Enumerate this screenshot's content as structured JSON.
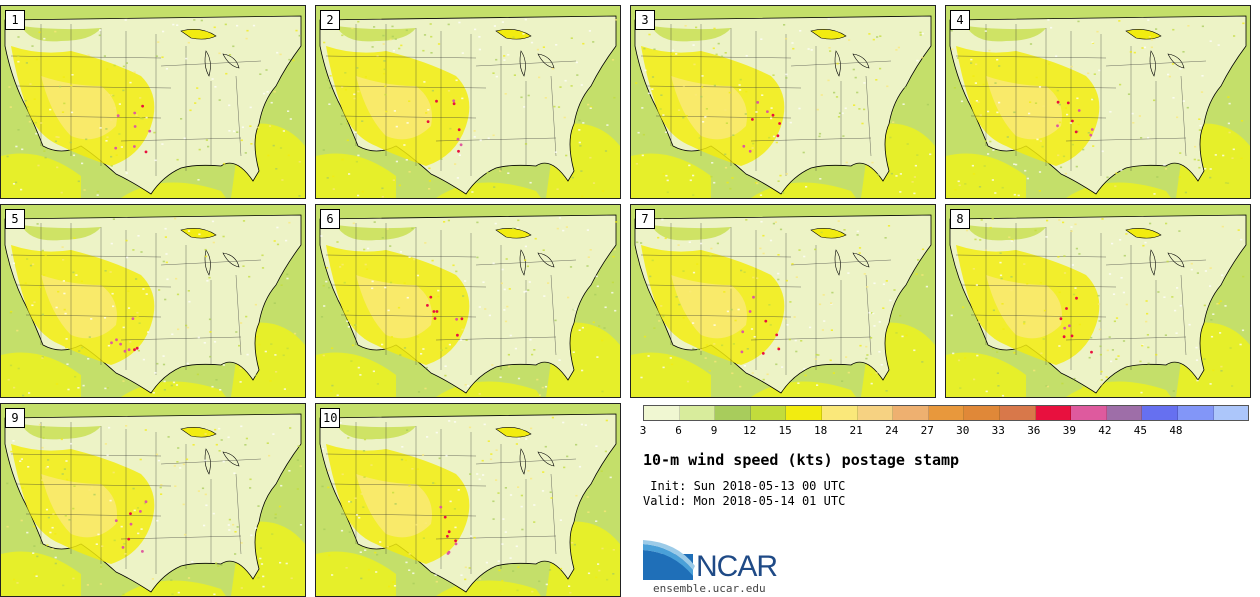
{
  "panels": [
    {
      "label": "1"
    },
    {
      "label": "2"
    },
    {
      "label": "3"
    },
    {
      "label": "4"
    },
    {
      "label": "5"
    },
    {
      "label": "6"
    },
    {
      "label": "7"
    },
    {
      "label": "8"
    },
    {
      "label": "9"
    },
    {
      "label": "10"
    }
  ],
  "legend": {
    "colors": [
      "#f0f7d2",
      "#d8ec9c",
      "#a8cc5c",
      "#c2dc3c",
      "#f2ec10",
      "#fae87a",
      "#f6d282",
      "#eeb070",
      "#e8983c",
      "#e08838",
      "#d8784a",
      "#e8103e",
      "#de5a9e",
      "#9e6ea8",
      "#6670f0",
      "#8296f8",
      "#acc6fa"
    ],
    "ticks": [
      "3",
      "6",
      "9",
      "12",
      "15",
      "18",
      "21",
      "24",
      "27",
      "30",
      "33",
      "36",
      "39",
      "42",
      "45",
      "48"
    ]
  },
  "title": "10-m wind speed (kts) postage stamp",
  "init": " Init: Sun 2018-05-13 00 UTC",
  "valid": "Valid: Mon 2018-05-14 01 UTC",
  "logo_text": "NCAR",
  "url": "ensemble.ucar.edu"
}
